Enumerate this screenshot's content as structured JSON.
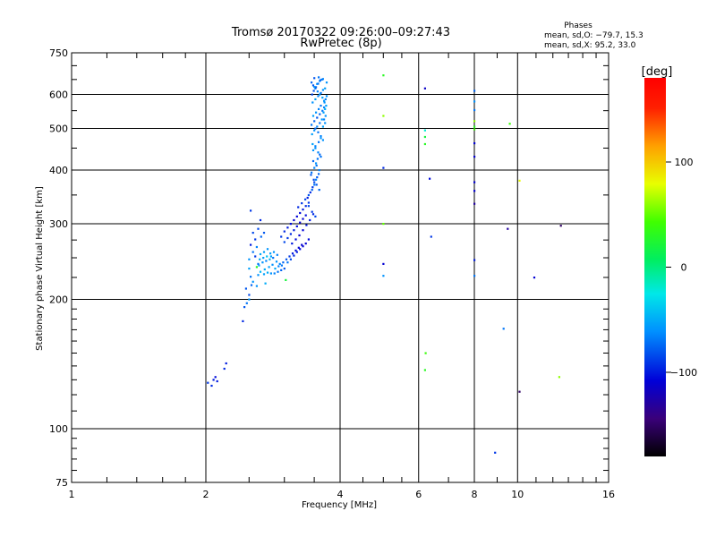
{
  "chart_data": {
    "type": "scatter",
    "title": "Tromsø 20170322 09:26:00–09:27:43",
    "subtitle": "RwPretec (8p)",
    "stats": {
      "heading": "Phases",
      "line1": "mean, sd,O: −79.7, 15.3",
      "line2": "mean, sd,X:  95.2, 33.0"
    },
    "xlabel": "Frequency [MHz]",
    "ylabel": "Stationary phase Virtual Height [km]",
    "x_scale": "log",
    "y_scale": "log",
    "xlim": [
      1,
      16
    ],
    "ylim": [
      75,
      750
    ],
    "x_ticks": [
      {
        "value": 1,
        "label": "1"
      },
      {
        "value": 2,
        "label": "2"
      },
      {
        "value": 4,
        "label": "4"
      },
      {
        "value": 6,
        "label": "6"
      },
      {
        "value": 8,
        "label": "8"
      },
      {
        "value": 10,
        "label": "10"
      },
      {
        "value": 16,
        "label": "16"
      }
    ],
    "y_ticks": [
      {
        "value": 75,
        "label": "75"
      },
      {
        "value": 100,
        "label": "100"
      },
      {
        "value": 200,
        "label": "200"
      },
      {
        "value": 300,
        "label": "300"
      },
      {
        "value": 400,
        "label": "400"
      },
      {
        "value": 500,
        "label": "500"
      },
      {
        "value": 600,
        "label": "600"
      },
      {
        "value": 750,
        "label": "750"
      }
    ],
    "grid": true,
    "colorbar": {
      "label": "[deg]",
      "range": [
        -180,
        180
      ],
      "ticks": [
        {
          "value": 100,
          "label": "100"
        },
        {
          "value": 0,
          "label": "0"
        },
        {
          "value": -100,
          "label": "−100"
        }
      ]
    },
    "points": [
      [
        2.02,
        128,
        -90
      ],
      [
        2.08,
        130,
        -100
      ],
      [
        2.1,
        132,
        -105
      ],
      [
        2.06,
        126,
        -95
      ],
      [
        2.12,
        129,
        -100
      ],
      [
        2.2,
        138,
        -95
      ],
      [
        2.22,
        142,
        -100
      ],
      [
        2.42,
        178,
        -95
      ],
      [
        2.44,
        192,
        -80
      ],
      [
        2.47,
        196,
        -70
      ],
      [
        2.5,
        200,
        -60
      ],
      [
        2.5,
        205,
        -85
      ],
      [
        2.46,
        212,
        -80
      ],
      [
        2.53,
        216,
        -75
      ],
      [
        2.55,
        220,
        -60
      ],
      [
        2.52,
        226,
        -70
      ],
      [
        2.5,
        236,
        -55
      ],
      [
        2.5,
        248,
        -60
      ],
      [
        2.58,
        252,
        -90
      ],
      [
        2.55,
        258,
        -70
      ],
      [
        2.52,
        268,
        -100
      ],
      [
        2.58,
        276,
        -90
      ],
      [
        2.55,
        286,
        -85
      ],
      [
        2.52,
        322,
        -90
      ],
      [
        2.65,
        306,
        -95
      ],
      [
        2.62,
        228,
        -60
      ],
      [
        2.65,
        232,
        -45
      ],
      [
        2.7,
        229,
        -55
      ],
      [
        2.75,
        231,
        -50
      ],
      [
        2.8,
        230,
        -60
      ],
      [
        2.85,
        230,
        -65
      ],
      [
        2.9,
        232,
        -70
      ],
      [
        2.95,
        234,
        -75
      ],
      [
        3.0,
        236,
        -80
      ],
      [
        2.63,
        240,
        -55
      ],
      [
        2.68,
        244,
        -60
      ],
      [
        2.73,
        246,
        -65
      ],
      [
        2.78,
        248,
        -45
      ],
      [
        2.83,
        250,
        -70
      ],
      [
        2.65,
        255,
        -50
      ],
      [
        2.7,
        258,
        -55
      ],
      [
        2.75,
        262,
        -60
      ],
      [
        2.8,
        252,
        -55
      ],
      [
        2.6,
        265,
        -65
      ],
      [
        2.88,
        245,
        -60
      ],
      [
        2.93,
        242,
        -65
      ],
      [
        2.98,
        244,
        -75
      ],
      [
        3.03,
        248,
        -80
      ],
      [
        3.08,
        252,
        -90
      ],
      [
        3.13,
        256,
        -100
      ],
      [
        3.18,
        260,
        -105
      ],
      [
        3.23,
        264,
        -110
      ],
      [
        3.28,
        268,
        -110
      ],
      [
        3.05,
        244,
        -70
      ],
      [
        3.1,
        248,
        -85
      ],
      [
        3.15,
        253,
        -95
      ],
      [
        3.2,
        258,
        -100
      ],
      [
        3.25,
        262,
        -105
      ],
      [
        3.3,
        266,
        -110
      ],
      [
        3.35,
        270,
        -110
      ],
      [
        3.4,
        276,
        -105
      ],
      [
        2.66,
        280,
        -75
      ],
      [
        2.7,
        286,
        -80
      ],
      [
        2.62,
        292,
        -85
      ],
      [
        2.6,
        215,
        -60
      ],
      [
        2.72,
        218,
        -50
      ],
      [
        3.02,
        222,
        20
      ],
      [
        2.6,
        238,
        30
      ],
      [
        2.62,
        242,
        -70
      ],
      [
        2.71,
        235,
        -50
      ],
      [
        2.77,
        238,
        -55
      ],
      [
        2.82,
        241,
        -60
      ],
      [
        2.86,
        236,
        -50
      ],
      [
        2.91,
        239,
        -65
      ],
      [
        2.96,
        240,
        -70
      ],
      [
        2.74,
        252,
        -40
      ],
      [
        2.79,
        256,
        -55
      ],
      [
        2.84,
        258,
        -60
      ],
      [
        2.89,
        254,
        -65
      ],
      [
        2.69,
        250,
        -55
      ],
      [
        2.64,
        248,
        -50
      ],
      [
        3.0,
        272,
        -85
      ],
      [
        3.05,
        278,
        -90
      ],
      [
        3.1,
        284,
        -95
      ],
      [
        3.15,
        290,
        -100
      ],
      [
        3.2,
        296,
        -105
      ],
      [
        3.25,
        302,
        -110
      ],
      [
        3.3,
        308,
        -110
      ],
      [
        3.35,
        314,
        -105
      ],
      [
        2.95,
        280,
        -90
      ],
      [
        3.0,
        288,
        -95
      ],
      [
        3.05,
        294,
        -100
      ],
      [
        3.1,
        300,
        -105
      ],
      [
        3.15,
        306,
        -110
      ],
      [
        3.2,
        312,
        -108
      ],
      [
        3.25,
        318,
        -105
      ],
      [
        3.3,
        324,
        -100
      ],
      [
        3.35,
        330,
        -95
      ],
      [
        3.4,
        336,
        -90
      ],
      [
        3.12,
        270,
        -100
      ],
      [
        3.18,
        276,
        -105
      ],
      [
        3.24,
        282,
        -110
      ],
      [
        3.3,
        290,
        -108
      ],
      [
        3.36,
        298,
        -102
      ],
      [
        3.42,
        306,
        -100
      ],
      [
        3.48,
        316,
        -95
      ],
      [
        3.22,
        328,
        -95
      ],
      [
        3.28,
        335,
        -90
      ],
      [
        3.34,
        342,
        -85
      ],
      [
        3.4,
        350,
        -80
      ],
      [
        3.46,
        360,
        -75
      ],
      [
        3.5,
        370,
        -70
      ],
      [
        3.53,
        380,
        -65
      ],
      [
        3.38,
        345,
        -100
      ],
      [
        3.43,
        355,
        -95
      ],
      [
        3.47,
        365,
        -90
      ],
      [
        3.5,
        375,
        -85
      ],
      [
        3.55,
        385,
        -80
      ],
      [
        3.58,
        392,
        -75
      ],
      [
        3.45,
        395,
        -70
      ],
      [
        3.5,
        405,
        -65
      ],
      [
        3.53,
        415,
        -60
      ],
      [
        3.56,
        425,
        -70
      ],
      [
        3.6,
        435,
        -75
      ],
      [
        3.48,
        445,
        -60
      ],
      [
        3.52,
        455,
        -65
      ],
      [
        3.58,
        465,
        -70
      ],
      [
        3.62,
        475,
        -60
      ],
      [
        3.46,
        485,
        -55
      ],
      [
        3.5,
        495,
        -60
      ],
      [
        3.55,
        505,
        -65
      ],
      [
        3.6,
        515,
        -70
      ],
      [
        3.64,
        525,
        -60
      ],
      [
        3.48,
        535,
        -55
      ],
      [
        3.53,
        545,
        -60
      ],
      [
        3.58,
        555,
        -65
      ],
      [
        3.62,
        565,
        -70
      ],
      [
        3.47,
        575,
        -60
      ],
      [
        3.52,
        585,
        -55
      ],
      [
        3.57,
        595,
        -65
      ],
      [
        3.62,
        605,
        -70
      ],
      [
        3.66,
        615,
        -60
      ],
      [
        3.5,
        625,
        -55
      ],
      [
        3.55,
        635,
        -60
      ],
      [
        3.6,
        645,
        -65
      ],
      [
        3.64,
        650,
        -70
      ],
      [
        3.45,
        640,
        -75
      ],
      [
        3.48,
        630,
        -80
      ],
      [
        3.52,
        620,
        -70
      ],
      [
        3.56,
        610,
        -65
      ],
      [
        3.6,
        600,
        -60
      ],
      [
        3.65,
        590,
        -55
      ],
      [
        3.68,
        580,
        -60
      ],
      [
        3.5,
        520,
        -75
      ],
      [
        3.55,
        530,
        -80
      ],
      [
        3.6,
        540,
        -75
      ],
      [
        3.65,
        550,
        -70
      ],
      [
        3.68,
        560,
        -65
      ],
      [
        3.45,
        510,
        -70
      ],
      [
        3.52,
        500,
        -75
      ],
      [
        3.57,
        490,
        -70
      ],
      [
        3.62,
        480,
        -65
      ],
      [
        3.66,
        470,
        -60
      ],
      [
        3.47,
        460,
        -55
      ],
      [
        3.52,
        450,
        -60
      ],
      [
        3.57,
        440,
        -65
      ],
      [
        3.62,
        430,
        -70
      ],
      [
        3.48,
        420,
        -75
      ],
      [
        3.54,
        410,
        -70
      ],
      [
        3.59,
        400,
        -65
      ],
      [
        3.44,
        390,
        -80
      ],
      [
        3.49,
        380,
        -85
      ],
      [
        3.54,
        370,
        -80
      ],
      [
        3.59,
        360,
        -75
      ],
      [
        3.4,
        330,
        -85
      ],
      [
        3.46,
        320,
        -90
      ],
      [
        3.52,
        312,
        -85
      ],
      [
        3.66,
        505,
        -55
      ],
      [
        3.7,
        515,
        -60
      ],
      [
        3.68,
        525,
        -65
      ],
      [
        3.71,
        535,
        -60
      ],
      [
        3.67,
        545,
        -55
      ],
      [
        3.7,
        555,
        -50
      ],
      [
        3.72,
        565,
        -55
      ],
      [
        3.69,
        575,
        -60
      ],
      [
        3.71,
        585,
        -65
      ],
      [
        3.73,
        595,
        -60
      ],
      [
        3.7,
        620,
        -55
      ],
      [
        3.73,
        640,
        -60
      ],
      [
        3.46,
        600,
        -85
      ],
      [
        3.49,
        612,
        -80
      ],
      [
        3.53,
        624,
        -75
      ],
      [
        3.57,
        636,
        -70
      ],
      [
        3.61,
        648,
        -75
      ],
      [
        3.5,
        655,
        -80
      ],
      [
        3.58,
        658,
        -70
      ],
      [
        3.66,
        652,
        -65
      ],
      [
        5.0,
        665,
        30
      ],
      [
        5.0,
        535,
        60
      ],
      [
        5.0,
        405,
        -95
      ],
      [
        5.0,
        300,
        50
      ],
      [
        5.0,
        242,
        -110
      ],
      [
        5.0,
        227,
        -60
      ],
      [
        6.2,
        620,
        -115
      ],
      [
        6.2,
        495,
        -20
      ],
      [
        6.2,
        478,
        20
      ],
      [
        6.2,
        460,
        30
      ],
      [
        6.35,
        382,
        -105
      ],
      [
        6.4,
        280,
        -90
      ],
      [
        6.22,
        150,
        40
      ],
      [
        6.2,
        137,
        30
      ],
      [
        8.0,
        612,
        -75
      ],
      [
        8.0,
        578,
        -60
      ],
      [
        8.0,
        552,
        -70
      ],
      [
        8.0,
        520,
        60
      ],
      [
        8.0,
        505,
        30
      ],
      [
        8.0,
        498,
        40
      ],
      [
        8.0,
        462,
        -110
      ],
      [
        8.0,
        430,
        -110
      ],
      [
        8.0,
        375,
        -110
      ],
      [
        8.0,
        358,
        -110
      ],
      [
        8.0,
        334,
        -130
      ],
      [
        8.0,
        247,
        -100
      ],
      [
        8.0,
        227,
        -70
      ],
      [
        9.6,
        513,
        40
      ],
      [
        9.5,
        292,
        -130
      ],
      [
        9.3,
        171,
        -70
      ],
      [
        10.1,
        378,
        80
      ],
      [
        10.1,
        122,
        -150
      ],
      [
        10.9,
        225,
        -110
      ],
      [
        12.5,
        297,
        -150
      ],
      [
        12.4,
        132,
        60
      ],
      [
        8.9,
        88,
        -90
      ]
    ]
  }
}
